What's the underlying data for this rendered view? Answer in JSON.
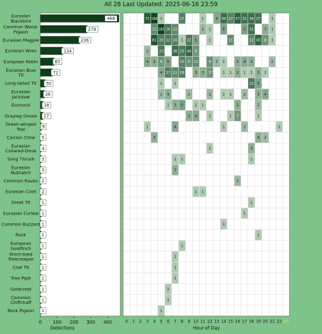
{
  "header": {
    "title": "All 28 Last Updated: 2025-06-16 23:59"
  },
  "theme": {
    "background": "#7ec38a",
    "bar_color": "#0f3d1c",
    "cell_light": "#dff0dc",
    "cell_dark": "#0b4420",
    "highlight_hour": "#e8f34a"
  },
  "chart_data": [
    {
      "type": "bar",
      "orientation": "horizontal",
      "xlabel": "Detections",
      "xticks": [
        0,
        100,
        200,
        300,
        400
      ],
      "xlim": [
        0,
        475
      ],
      "categories": [
        "Eurasian Blackbird",
        "Common Wood-Pigeon",
        "Eurasian Magpie",
        "Eurasian Wren",
        "European Robin",
        "Eurasian Blue Tit",
        "Long-tailed Tit",
        "Eurasian Jackdaw",
        "Dunnock",
        "Graylag Goose",
        "Green-winged Teal",
        "Carrion Crow",
        "Eurasian Collared-Dove",
        "Song Thrush",
        "Eurasian Nuthatch",
        "Common Raven",
        "Eurasian Coot",
        "Great Tit",
        "Eurasian Curlew",
        "Common Buzzard",
        "Rook",
        "European Goldfinch",
        "Short-toed Treecreeper",
        "Coal Tit",
        "Tree Pipit",
        "Goldcrest",
        "Common Chiffchaff",
        "Rock Pigeon"
      ],
      "values": [
        468,
        279,
        236,
        134,
        83,
        72,
        30,
        26,
        18,
        17,
        9,
        5,
        4,
        3,
        3,
        2,
        2,
        1,
        1,
        1,
        1,
        1,
        1,
        1,
        1,
        1,
        1,
        1
      ]
    },
    {
      "type": "heatmap",
      "xlabel": "Hour of Day",
      "hours": [
        0,
        1,
        2,
        3,
        4,
        5,
        6,
        7,
        8,
        9,
        10,
        11,
        12,
        13,
        14,
        15,
        16,
        17,
        18,
        19,
        20,
        21,
        22,
        23
      ],
      "highlight_hour": 23,
      "rows": [
        [
          0,
          0,
          0,
          71,
          166,
          1,
          0,
          0,
          17,
          0,
          0,
          1,
          0,
          4,
          34,
          17,
          57,
          32,
          34,
          27,
          0,
          1,
          0,
          0
        ],
        [
          0,
          0,
          0,
          0,
          11,
          165,
          30,
          12,
          0,
          0,
          0,
          2,
          1,
          0,
          5,
          0,
          0,
          5,
          31,
          0,
          3,
          1,
          0,
          0
        ],
        [
          0,
          0,
          0,
          0,
          81,
          20,
          22,
          16,
          1,
          22,
          5,
          0,
          1,
          0,
          0,
          11,
          0,
          0,
          12,
          45,
          8,
          1,
          0,
          0
        ],
        [
          0,
          0,
          0,
          2,
          0,
          23,
          0,
          36,
          23,
          44,
          8,
          0,
          0,
          0,
          0,
          0,
          0,
          0,
          0,
          0,
          0,
          0,
          0,
          0
        ],
        [
          0,
          0,
          0,
          4,
          3,
          8,
          5,
          0,
          15,
          9,
          11,
          0,
          9,
          2,
          1,
          0,
          3,
          4,
          3,
          0,
          0,
          2,
          0,
          0
        ],
        [
          0,
          0,
          0,
          0,
          0,
          4,
          17,
          12,
          16,
          0,
          3,
          3,
          7,
          0,
          1,
          1,
          3,
          1,
          1,
          3,
          1,
          0,
          0,
          0
        ],
        [
          0,
          0,
          0,
          0,
          0,
          1,
          0,
          1,
          0,
          0,
          0,
          0,
          0,
          0,
          0,
          0,
          0,
          0,
          23,
          5,
          0,
          0,
          0,
          0
        ],
        [
          0,
          0,
          0,
          0,
          0,
          2,
          3,
          0,
          0,
          2,
          0,
          0,
          2,
          0,
          1,
          1,
          0,
          2,
          0,
          3,
          4,
          0,
          0,
          0
        ],
        [
          0,
          0,
          0,
          0,
          0,
          0,
          1,
          3,
          5,
          0,
          1,
          1,
          0,
          0,
          0,
          0,
          3,
          0,
          0,
          2,
          0,
          0,
          0,
          0
        ],
        [
          0,
          0,
          0,
          0,
          0,
          0,
          0,
          0,
          0,
          3,
          4,
          0,
          1,
          0,
          0,
          1,
          7,
          0,
          0,
          1,
          0,
          0,
          0,
          0
        ],
        [
          0,
          0,
          0,
          1,
          0,
          0,
          0,
          4,
          0,
          0,
          0,
          0,
          0,
          0,
          1,
          0,
          0,
          2,
          0,
          0,
          0,
          0,
          1,
          0
        ],
        [
          0,
          0,
          0,
          0,
          3,
          0,
          0,
          0,
          0,
          0,
          0,
          0,
          0,
          0,
          0,
          0,
          0,
          0,
          0,
          3,
          2,
          0,
          0,
          0
        ],
        [
          0,
          0,
          0,
          0,
          0,
          0,
          0,
          0,
          0,
          0,
          0,
          0,
          1,
          0,
          0,
          0,
          0,
          0,
          3,
          0,
          0,
          0,
          0,
          0
        ],
        [
          0,
          0,
          0,
          0,
          0,
          0,
          0,
          1,
          1,
          0,
          0,
          0,
          0,
          0,
          0,
          0,
          0,
          0,
          1,
          0,
          0,
          0,
          0,
          0
        ],
        [
          0,
          0,
          0,
          0,
          0,
          0,
          0,
          3,
          0,
          0,
          0,
          0,
          0,
          0,
          0,
          0,
          0,
          0,
          0,
          0,
          0,
          0,
          0,
          0
        ],
        [
          0,
          0,
          0,
          0,
          0,
          0,
          0,
          0,
          0,
          0,
          0,
          0,
          0,
          0,
          0,
          0,
          2,
          0,
          0,
          0,
          0,
          0,
          0,
          0
        ],
        [
          0,
          0,
          0,
          0,
          0,
          0,
          0,
          0,
          0,
          0,
          1,
          1,
          0,
          0,
          0,
          0,
          0,
          0,
          0,
          0,
          0,
          0,
          0,
          0
        ],
        [
          0,
          0,
          0,
          0,
          0,
          0,
          0,
          0,
          0,
          0,
          0,
          0,
          0,
          0,
          0,
          0,
          0,
          0,
          1,
          0,
          0,
          0,
          0,
          0
        ],
        [
          0,
          0,
          0,
          0,
          0,
          0,
          0,
          0,
          0,
          0,
          0,
          0,
          0,
          0,
          0,
          0,
          0,
          1,
          0,
          0,
          0,
          0,
          0,
          0
        ],
        [
          0,
          0,
          0,
          0,
          0,
          0,
          0,
          0,
          0,
          0,
          0,
          0,
          0,
          0,
          1,
          0,
          0,
          0,
          0,
          0,
          0,
          0,
          0,
          0
        ],
        [
          0,
          0,
          0,
          0,
          0,
          0,
          0,
          0,
          0,
          0,
          0,
          0,
          0,
          0,
          0,
          0,
          0,
          0,
          0,
          1,
          0,
          0,
          0,
          0
        ],
        [
          0,
          0,
          0,
          0,
          0,
          0,
          0,
          0,
          1,
          0,
          0,
          0,
          0,
          0,
          0,
          0,
          0,
          0,
          0,
          0,
          0,
          0,
          0,
          0
        ],
        [
          0,
          0,
          0,
          0,
          0,
          0,
          0,
          1,
          0,
          0,
          0,
          0,
          0,
          0,
          0,
          0,
          0,
          0,
          0,
          0,
          0,
          0,
          0,
          0
        ],
        [
          0,
          0,
          0,
          0,
          0,
          0,
          0,
          1,
          0,
          0,
          0,
          0,
          0,
          0,
          0,
          0,
          0,
          0,
          0,
          0,
          0,
          0,
          0,
          0
        ],
        [
          0,
          0,
          0,
          0,
          0,
          0,
          0,
          1,
          0,
          0,
          0,
          0,
          0,
          0,
          0,
          0,
          0,
          0,
          0,
          0,
          0,
          0,
          0,
          0
        ],
        [
          0,
          0,
          0,
          0,
          0,
          0,
          1,
          0,
          0,
          0,
          0,
          0,
          0,
          0,
          0,
          0,
          0,
          0,
          0,
          0,
          0,
          0,
          0,
          0
        ],
        [
          0,
          0,
          0,
          0,
          0,
          0,
          1,
          0,
          0,
          0,
          0,
          0,
          0,
          0,
          0,
          0,
          0,
          0,
          0,
          0,
          0,
          0,
          0,
          0
        ],
        [
          0,
          0,
          0,
          0,
          0,
          1,
          0,
          0,
          0,
          0,
          0,
          0,
          0,
          0,
          0,
          0,
          0,
          0,
          0,
          0,
          0,
          0,
          0,
          0
        ]
      ]
    }
  ]
}
